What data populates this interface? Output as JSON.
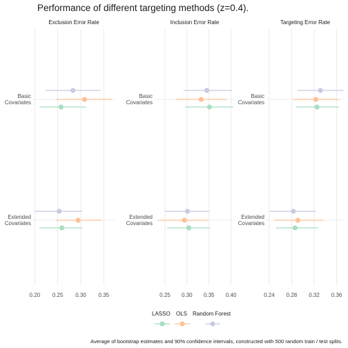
{
  "chart_data": {
    "type": "scatter",
    "title": "Performance of different targeting methods (z=0.4).",
    "caption": "Average of bootstrap estimates and 90% confidence intervals, constructed with 500 random train / test splits.",
    "categories": [
      "Basic\nCovariates",
      "Extended\nCovariates"
    ],
    "series": [
      {
        "name": "LASSO",
        "color": "#a6dfc0"
      },
      {
        "name": "OLS",
        "color": "#fdc195"
      },
      {
        "name": "Random Forest",
        "color": "#c5cbe3"
      }
    ],
    "grid": true,
    "legend_position": "bottom",
    "facets": [
      {
        "title": "Exclusion Error Rate",
        "xlim": [
          0.195,
          0.375
        ],
        "ticks": [
          0.2,
          0.25,
          0.3,
          0.35
        ],
        "tick_labels": [
          "0.20",
          "0.25",
          "0.30",
          "0.35"
        ],
        "points": [
          {
            "category": 0,
            "series": "Random Forest",
            "x": 0.283,
            "lo": 0.224,
            "hi": 0.343
          },
          {
            "category": 0,
            "series": "OLS",
            "x": 0.308,
            "lo": 0.246,
            "hi": 0.368
          },
          {
            "category": 0,
            "series": "LASSO",
            "x": 0.257,
            "lo": 0.21,
            "hi": 0.312
          },
          {
            "category": 1,
            "series": "Random Forest",
            "x": 0.253,
            "lo": 0.2,
            "hi": 0.303
          },
          {
            "category": 1,
            "series": "OLS",
            "x": 0.294,
            "lo": 0.246,
            "hi": 0.345
          },
          {
            "category": 1,
            "series": "LASSO",
            "x": 0.259,
            "lo": 0.21,
            "hi": 0.304
          }
        ]
      },
      {
        "title": "Inclusion Error Rate",
        "xlim": [
          0.225,
          0.41
        ],
        "ticks": [
          0.25,
          0.3,
          0.35,
          0.4
        ],
        "tick_labels": [
          "0.25",
          "0.30",
          "0.35",
          "0.40"
        ],
        "points": [
          {
            "category": 0,
            "series": "Random Forest",
            "x": 0.345,
            "lo": 0.292,
            "hi": 0.402
          },
          {
            "category": 0,
            "series": "OLS",
            "x": 0.332,
            "lo": 0.275,
            "hi": 0.39
          },
          {
            "category": 0,
            "series": "LASSO",
            "x": 0.351,
            "lo": 0.296,
            "hi": 0.405
          },
          {
            "category": 1,
            "series": "Random Forest",
            "x": 0.301,
            "lo": 0.25,
            "hi": 0.35
          },
          {
            "category": 1,
            "series": "OLS",
            "x": 0.294,
            "lo": 0.234,
            "hi": 0.348
          },
          {
            "category": 1,
            "series": "LASSO",
            "x": 0.304,
            "lo": 0.255,
            "hi": 0.352
          }
        ]
      },
      {
        "title": "Targeting Error Rate",
        "xlim": [
          0.234,
          0.374
        ],
        "ticks": [
          0.24,
          0.28,
          0.32,
          0.36
        ],
        "tick_labels": [
          "0.24",
          "0.28",
          "0.32",
          "0.36"
        ],
        "points": [
          {
            "category": 0,
            "series": "Random Forest",
            "x": 0.331,
            "lo": 0.29,
            "hi": 0.372
          },
          {
            "category": 0,
            "series": "OLS",
            "x": 0.323,
            "lo": 0.282,
            "hi": 0.365
          },
          {
            "category": 0,
            "series": "LASSO",
            "x": 0.325,
            "lo": 0.287,
            "hi": 0.364
          },
          {
            "category": 1,
            "series": "Random Forest",
            "x": 0.283,
            "lo": 0.241,
            "hi": 0.323
          },
          {
            "category": 1,
            "series": "OLS",
            "x": 0.291,
            "lo": 0.249,
            "hi": 0.336
          },
          {
            "category": 1,
            "series": "LASSO",
            "x": 0.286,
            "lo": 0.252,
            "hi": 0.327
          }
        ]
      }
    ]
  }
}
